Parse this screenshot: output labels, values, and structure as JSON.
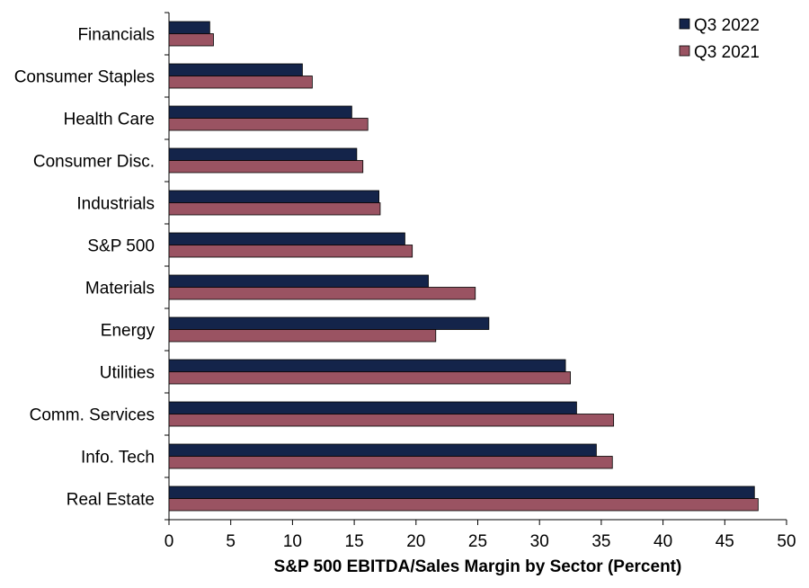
{
  "chart_data": {
    "type": "bar",
    "orientation": "horizontal",
    "categories": [
      "Financials",
      "Consumer Staples",
      "Health Care",
      "Consumer Disc.",
      "Industrials",
      "S&P 500",
      "Materials",
      "Energy",
      "Utilities",
      "Comm. Services",
      "Info. Tech",
      "Real Estate"
    ],
    "series": [
      {
        "name": "Q3 2022",
        "color": "#14244a",
        "values": [
          3.3,
          10.8,
          14.8,
          15.2,
          17.0,
          19.1,
          21.0,
          25.9,
          32.1,
          33.0,
          34.6,
          47.4
        ]
      },
      {
        "name": "Q3 2021",
        "color": "#9a5362",
        "values": [
          3.6,
          11.6,
          16.1,
          15.7,
          17.1,
          19.7,
          24.8,
          21.6,
          32.5,
          36.0,
          35.9,
          47.7
        ]
      }
    ],
    "xlim": [
      0,
      50
    ],
    "xticks": [
      "0",
      "5",
      "10",
      "15",
      "20",
      "25",
      "30",
      "35",
      "40",
      "45",
      "50"
    ],
    "xlabel": "S&P 500 EBITDA/Sales Margin by Sector (Percent)",
    "ylabel": "",
    "title": "",
    "grid": false,
    "legend_position": "top-right"
  }
}
